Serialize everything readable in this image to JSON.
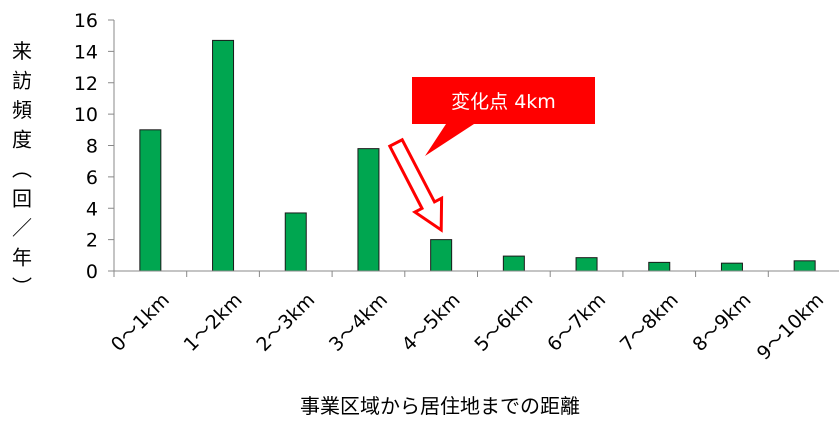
{
  "chart_data": {
    "type": "bar",
    "categories": [
      "0～1km",
      "1～2km",
      "2～3km",
      "3～4km",
      "4～5km",
      "5～6km",
      "6～7km",
      "7～8km",
      "8～9km",
      "9～10km"
    ],
    "values": [
      9.0,
      14.7,
      3.7,
      7.8,
      2.0,
      0.95,
      0.85,
      0.55,
      0.5,
      0.65
    ],
    "ylim": [
      0,
      16
    ],
    "yticks": [
      0,
      2,
      4,
      6,
      8,
      10,
      12,
      14,
      16
    ],
    "xlabel": "事業区域から居住地までの距離",
    "ylabel_chars": [
      "来",
      "訪",
      "頻",
      "度",
      "︵",
      "回",
      "／",
      "年",
      "︶"
    ],
    "grid": false,
    "legend": "none",
    "bar_color": "#00a650",
    "annotation": {
      "text": "変化点 4km",
      "target_category": "4～5km",
      "box_color": "#ff0000",
      "arrow_color": "#ff0000"
    }
  }
}
